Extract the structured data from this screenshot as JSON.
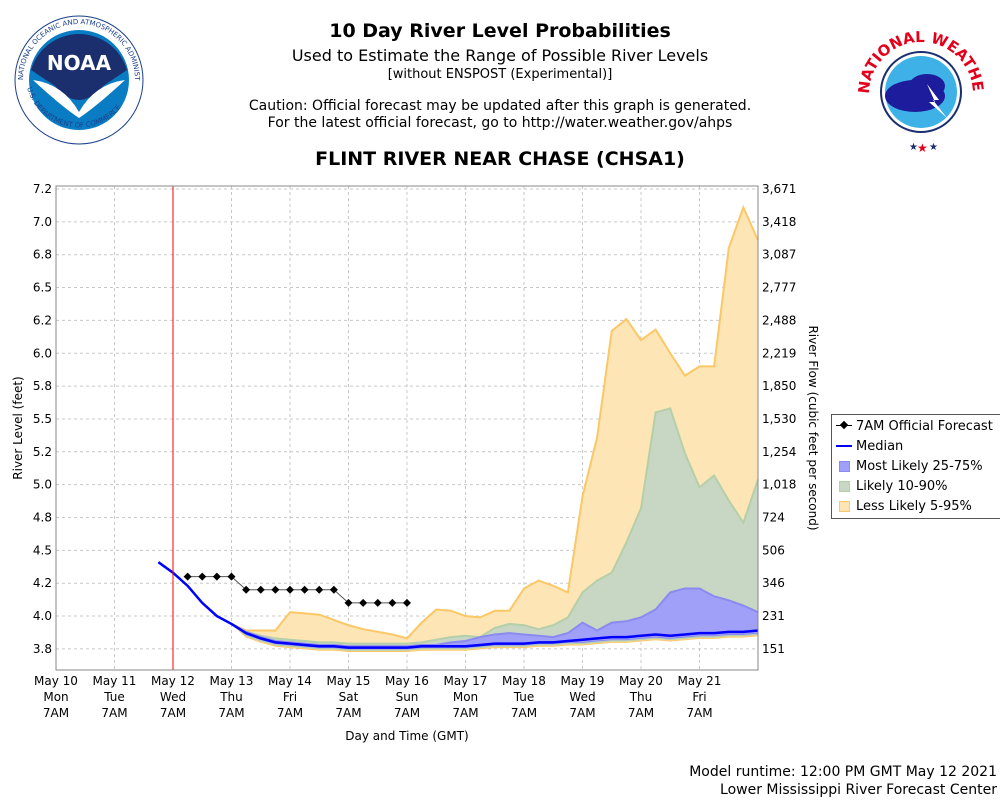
{
  "header": {
    "title": "10 Day River Level Probabilities",
    "subtitle": "Used to Estimate the Range of Possible River Levels",
    "subtitle2": "[without ENSPOST (Experimental)]",
    "caution1": "Caution: Official forecast may be updated after this graph is generated.",
    "caution2": "For the latest official forecast, go to http://water.weather.gov/ahps",
    "station": "FLINT RIVER NEAR CHASE (CHSA1)"
  },
  "logos": {
    "left": "NOAA - NATIONAL OCEANIC AND ATMOSPHERIC ADMINISTRATION - U.S. DEPARTMENT OF COMMERCE",
    "right": "NATIONAL WEATHER SERVICE"
  },
  "footer": {
    "runtime": "Model runtime: 12:00 PM GMT May 12 2021",
    "center": "Lower Mississippi River Forecast Center"
  },
  "chart_data": {
    "type": "area",
    "title": "FLINT RIVER NEAR CHASE (CHSA1)",
    "xlabel": "Day and Time (GMT)",
    "ylabel": "River Level (feet)",
    "y2label": "River Flow (cubic feet per second)",
    "ylim": [
      3.67,
      7.27
    ],
    "xlim": [
      "2021-05-10T07:00",
      "2021-05-22T07:00"
    ],
    "grid": true,
    "legend_position": "right",
    "current_time_marker": "2021-05-12T07:00",
    "colors": {
      "forecast": "#000000",
      "median": "#0000ff",
      "p25_75": "#a0a0f8",
      "p10_90": "#c8d6c4",
      "p5_95": "#fde5b5",
      "p5_95_line": "#fcc766",
      "p10_90_line": "#b5cfa8",
      "p25_75_line": "#8a8aef",
      "marker": "#ff0000"
    },
    "x_ticks": [
      {
        "t": "2021-05-10T07:00",
        "date": "May 10",
        "day": "Mon",
        "time": "7AM"
      },
      {
        "t": "2021-05-11T07:00",
        "date": "May 11",
        "day": "Tue",
        "time": "7AM"
      },
      {
        "t": "2021-05-12T07:00",
        "date": "May 12",
        "day": "Wed",
        "time": "7AM"
      },
      {
        "t": "2021-05-13T07:00",
        "date": "May 13",
        "day": "Thu",
        "time": "7AM"
      },
      {
        "t": "2021-05-14T07:00",
        "date": "May 14",
        "day": "Fri",
        "time": "7AM"
      },
      {
        "t": "2021-05-15T07:00",
        "date": "May 15",
        "day": "Sat",
        "time": "7AM"
      },
      {
        "t": "2021-05-16T07:00",
        "date": "May 16",
        "day": "Sun",
        "time": "7AM"
      },
      {
        "t": "2021-05-17T07:00",
        "date": "May 17",
        "day": "Mon",
        "time": "7AM"
      },
      {
        "t": "2021-05-18T07:00",
        "date": "May 18",
        "day": "Tue",
        "time": "7AM"
      },
      {
        "t": "2021-05-19T07:00",
        "date": "May 19",
        "day": "Wed",
        "time": "7AM"
      },
      {
        "t": "2021-05-20T07:00",
        "date": "May 20",
        "day": "Thu",
        "time": "7AM"
      },
      {
        "t": "2021-05-21T07:00",
        "date": "May 21",
        "day": "Fri",
        "time": "7AM"
      }
    ],
    "y_ticks": [
      {
        "v": 7.25,
        "label": "7.2",
        "flow": "3,671"
      },
      {
        "v": 7.0,
        "label": "7.0",
        "flow": "3,418"
      },
      {
        "v": 6.75,
        "label": "6.8",
        "flow": "3,087"
      },
      {
        "v": 6.5,
        "label": "6.5",
        "flow": "2,777"
      },
      {
        "v": 6.25,
        "label": "6.2",
        "flow": "2,488"
      },
      {
        "v": 6.0,
        "label": "6.0",
        "flow": "2,219"
      },
      {
        "v": 5.75,
        "label": "5.8",
        "flow": "1,850"
      },
      {
        "v": 5.5,
        "label": "5.5",
        "flow": "1,530"
      },
      {
        "v": 5.25,
        "label": "5.2",
        "flow": "1,254"
      },
      {
        "v": 5.0,
        "label": "5.0",
        "flow": "1,018"
      },
      {
        "v": 4.75,
        "label": "4.8",
        "flow": "724"
      },
      {
        "v": 4.5,
        "label": "4.5",
        "flow": "506"
      },
      {
        "v": 4.25,
        "label": "4.2",
        "flow": "346"
      },
      {
        "v": 4.0,
        "label": "4.0",
        "flow": "231"
      },
      {
        "v": 3.75,
        "label": "3.8",
        "flow": "151"
      }
    ],
    "legend": [
      "7AM Official Forecast",
      "Median",
      "Most Likely 25-75%",
      "Likely 10-90%",
      "Less Likely 5-95%"
    ],
    "times": [
      "2021-05-12T01:00",
      "2021-05-12T07:00",
      "2021-05-12T13:00",
      "2021-05-12T19:00",
      "2021-05-13T01:00",
      "2021-05-13T07:00",
      "2021-05-13T13:00",
      "2021-05-13T19:00",
      "2021-05-14T01:00",
      "2021-05-14T07:00",
      "2021-05-14T13:00",
      "2021-05-14T19:00",
      "2021-05-15T01:00",
      "2021-05-15T07:00",
      "2021-05-15T13:00",
      "2021-05-15T19:00",
      "2021-05-16T01:00",
      "2021-05-16T07:00",
      "2021-05-16T13:00",
      "2021-05-16T19:00",
      "2021-05-17T01:00",
      "2021-05-17T07:00",
      "2021-05-17T13:00",
      "2021-05-17T19:00",
      "2021-05-18T01:00",
      "2021-05-18T07:00",
      "2021-05-18T13:00",
      "2021-05-18T19:00",
      "2021-05-19T01:00",
      "2021-05-19T07:00",
      "2021-05-19T13:00",
      "2021-05-19T19:00",
      "2021-05-20T01:00",
      "2021-05-20T07:00",
      "2021-05-20T13:00",
      "2021-05-20T19:00",
      "2021-05-21T01:00",
      "2021-05-21T07:00",
      "2021-05-21T13:00",
      "2021-05-21T19:00",
      "2021-05-22T01:00",
      "2021-05-22T07:00"
    ],
    "median": [
      4.41,
      4.33,
      4.23,
      4.1,
      4.0,
      3.94,
      3.87,
      3.83,
      3.8,
      3.79,
      3.78,
      3.77,
      3.77,
      3.76,
      3.76,
      3.76,
      3.76,
      3.76,
      3.77,
      3.77,
      3.77,
      3.77,
      3.78,
      3.79,
      3.79,
      3.79,
      3.8,
      3.8,
      3.81,
      3.82,
      3.83,
      3.84,
      3.84,
      3.85,
      3.86,
      3.85,
      3.86,
      3.87,
      3.87,
      3.88,
      3.88,
      3.89
    ],
    "p5": [
      4.41,
      4.33,
      4.23,
      4.1,
      4.0,
      3.94,
      3.84,
      3.8,
      3.77,
      3.76,
      3.75,
      3.74,
      3.74,
      3.73,
      3.73,
      3.73,
      3.73,
      3.73,
      3.74,
      3.74,
      3.74,
      3.74,
      3.75,
      3.76,
      3.76,
      3.76,
      3.77,
      3.77,
      3.78,
      3.78,
      3.79,
      3.8,
      3.8,
      3.81,
      3.82,
      3.81,
      3.82,
      3.83,
      3.83,
      3.84,
      3.84,
      3.85
    ],
    "p10": [
      4.41,
      4.33,
      4.23,
      4.1,
      4.0,
      3.94,
      3.85,
      3.81,
      3.78,
      3.77,
      3.76,
      3.75,
      3.75,
      3.74,
      3.74,
      3.74,
      3.74,
      3.74,
      3.75,
      3.75,
      3.75,
      3.75,
      3.76,
      3.77,
      3.77,
      3.77,
      3.78,
      3.78,
      3.79,
      3.79,
      3.8,
      3.81,
      3.81,
      3.82,
      3.83,
      3.82,
      3.83,
      3.84,
      3.84,
      3.85,
      3.85,
      3.86
    ],
    "p25": [
      4.41,
      4.33,
      4.23,
      4.1,
      4.0,
      3.94,
      3.86,
      3.82,
      3.79,
      3.78,
      3.77,
      3.76,
      3.76,
      3.75,
      3.75,
      3.75,
      3.75,
      3.75,
      3.76,
      3.76,
      3.76,
      3.76,
      3.77,
      3.78,
      3.78,
      3.78,
      3.79,
      3.79,
      3.8,
      3.8,
      3.81,
      3.82,
      3.82,
      3.83,
      3.84,
      3.83,
      3.84,
      3.85,
      3.85,
      3.86,
      3.86,
      3.87
    ],
    "p75": [
      4.41,
      4.33,
      4.23,
      4.1,
      4.0,
      3.94,
      3.88,
      3.84,
      3.81,
      3.8,
      3.79,
      3.78,
      3.78,
      3.77,
      3.77,
      3.77,
      3.77,
      3.77,
      3.78,
      3.78,
      3.8,
      3.81,
      3.84,
      3.86,
      3.87,
      3.86,
      3.85,
      3.84,
      3.87,
      3.95,
      3.89,
      3.95,
      3.96,
      3.99,
      4.05,
      4.18,
      4.21,
      4.21,
      4.15,
      4.12,
      4.08,
      4.03
    ],
    "p90": [
      4.41,
      4.33,
      4.23,
      4.1,
      4.0,
      3.94,
      3.88,
      3.85,
      3.83,
      3.82,
      3.81,
      3.8,
      3.8,
      3.79,
      3.79,
      3.79,
      3.79,
      3.79,
      3.8,
      3.82,
      3.84,
      3.85,
      3.84,
      3.91,
      3.94,
      3.93,
      3.9,
      3.93,
      3.99,
      4.18,
      4.27,
      4.33,
      4.56,
      4.82,
      5.55,
      5.58,
      5.24,
      4.98,
      5.07,
      4.88,
      4.71,
      5.04
    ],
    "p95": [
      4.41,
      4.33,
      4.23,
      4.1,
      4.0,
      3.94,
      3.89,
      3.89,
      3.89,
      4.03,
      4.02,
      4.01,
      3.97,
      3.93,
      3.9,
      3.88,
      3.86,
      3.83,
      3.95,
      4.05,
      4.04,
      4.0,
      3.99,
      4.04,
      4.04,
      4.21,
      4.27,
      4.23,
      4.18,
      4.91,
      5.36,
      6.17,
      6.26,
      6.1,
      6.18,
      6.0,
      5.83,
      5.9,
      5.9,
      6.8,
      7.11,
      6.86
    ],
    "forecast": {
      "times": [
        "2021-05-12T13:00",
        "2021-05-12T19:00",
        "2021-05-13T01:00",
        "2021-05-13T07:00",
        "2021-05-13T13:00",
        "2021-05-13T19:00",
        "2021-05-14T01:00",
        "2021-05-14T07:00",
        "2021-05-14T13:00",
        "2021-05-14T19:00",
        "2021-05-15T01:00",
        "2021-05-15T07:00",
        "2021-05-15T13:00",
        "2021-05-15T19:00",
        "2021-05-16T01:00",
        "2021-05-16T07:00"
      ],
      "values": [
        4.3,
        4.3,
        4.3,
        4.3,
        4.2,
        4.2,
        4.2,
        4.2,
        4.2,
        4.2,
        4.2,
        4.1,
        4.1,
        4.1,
        4.1,
        4.1
      ]
    }
  }
}
